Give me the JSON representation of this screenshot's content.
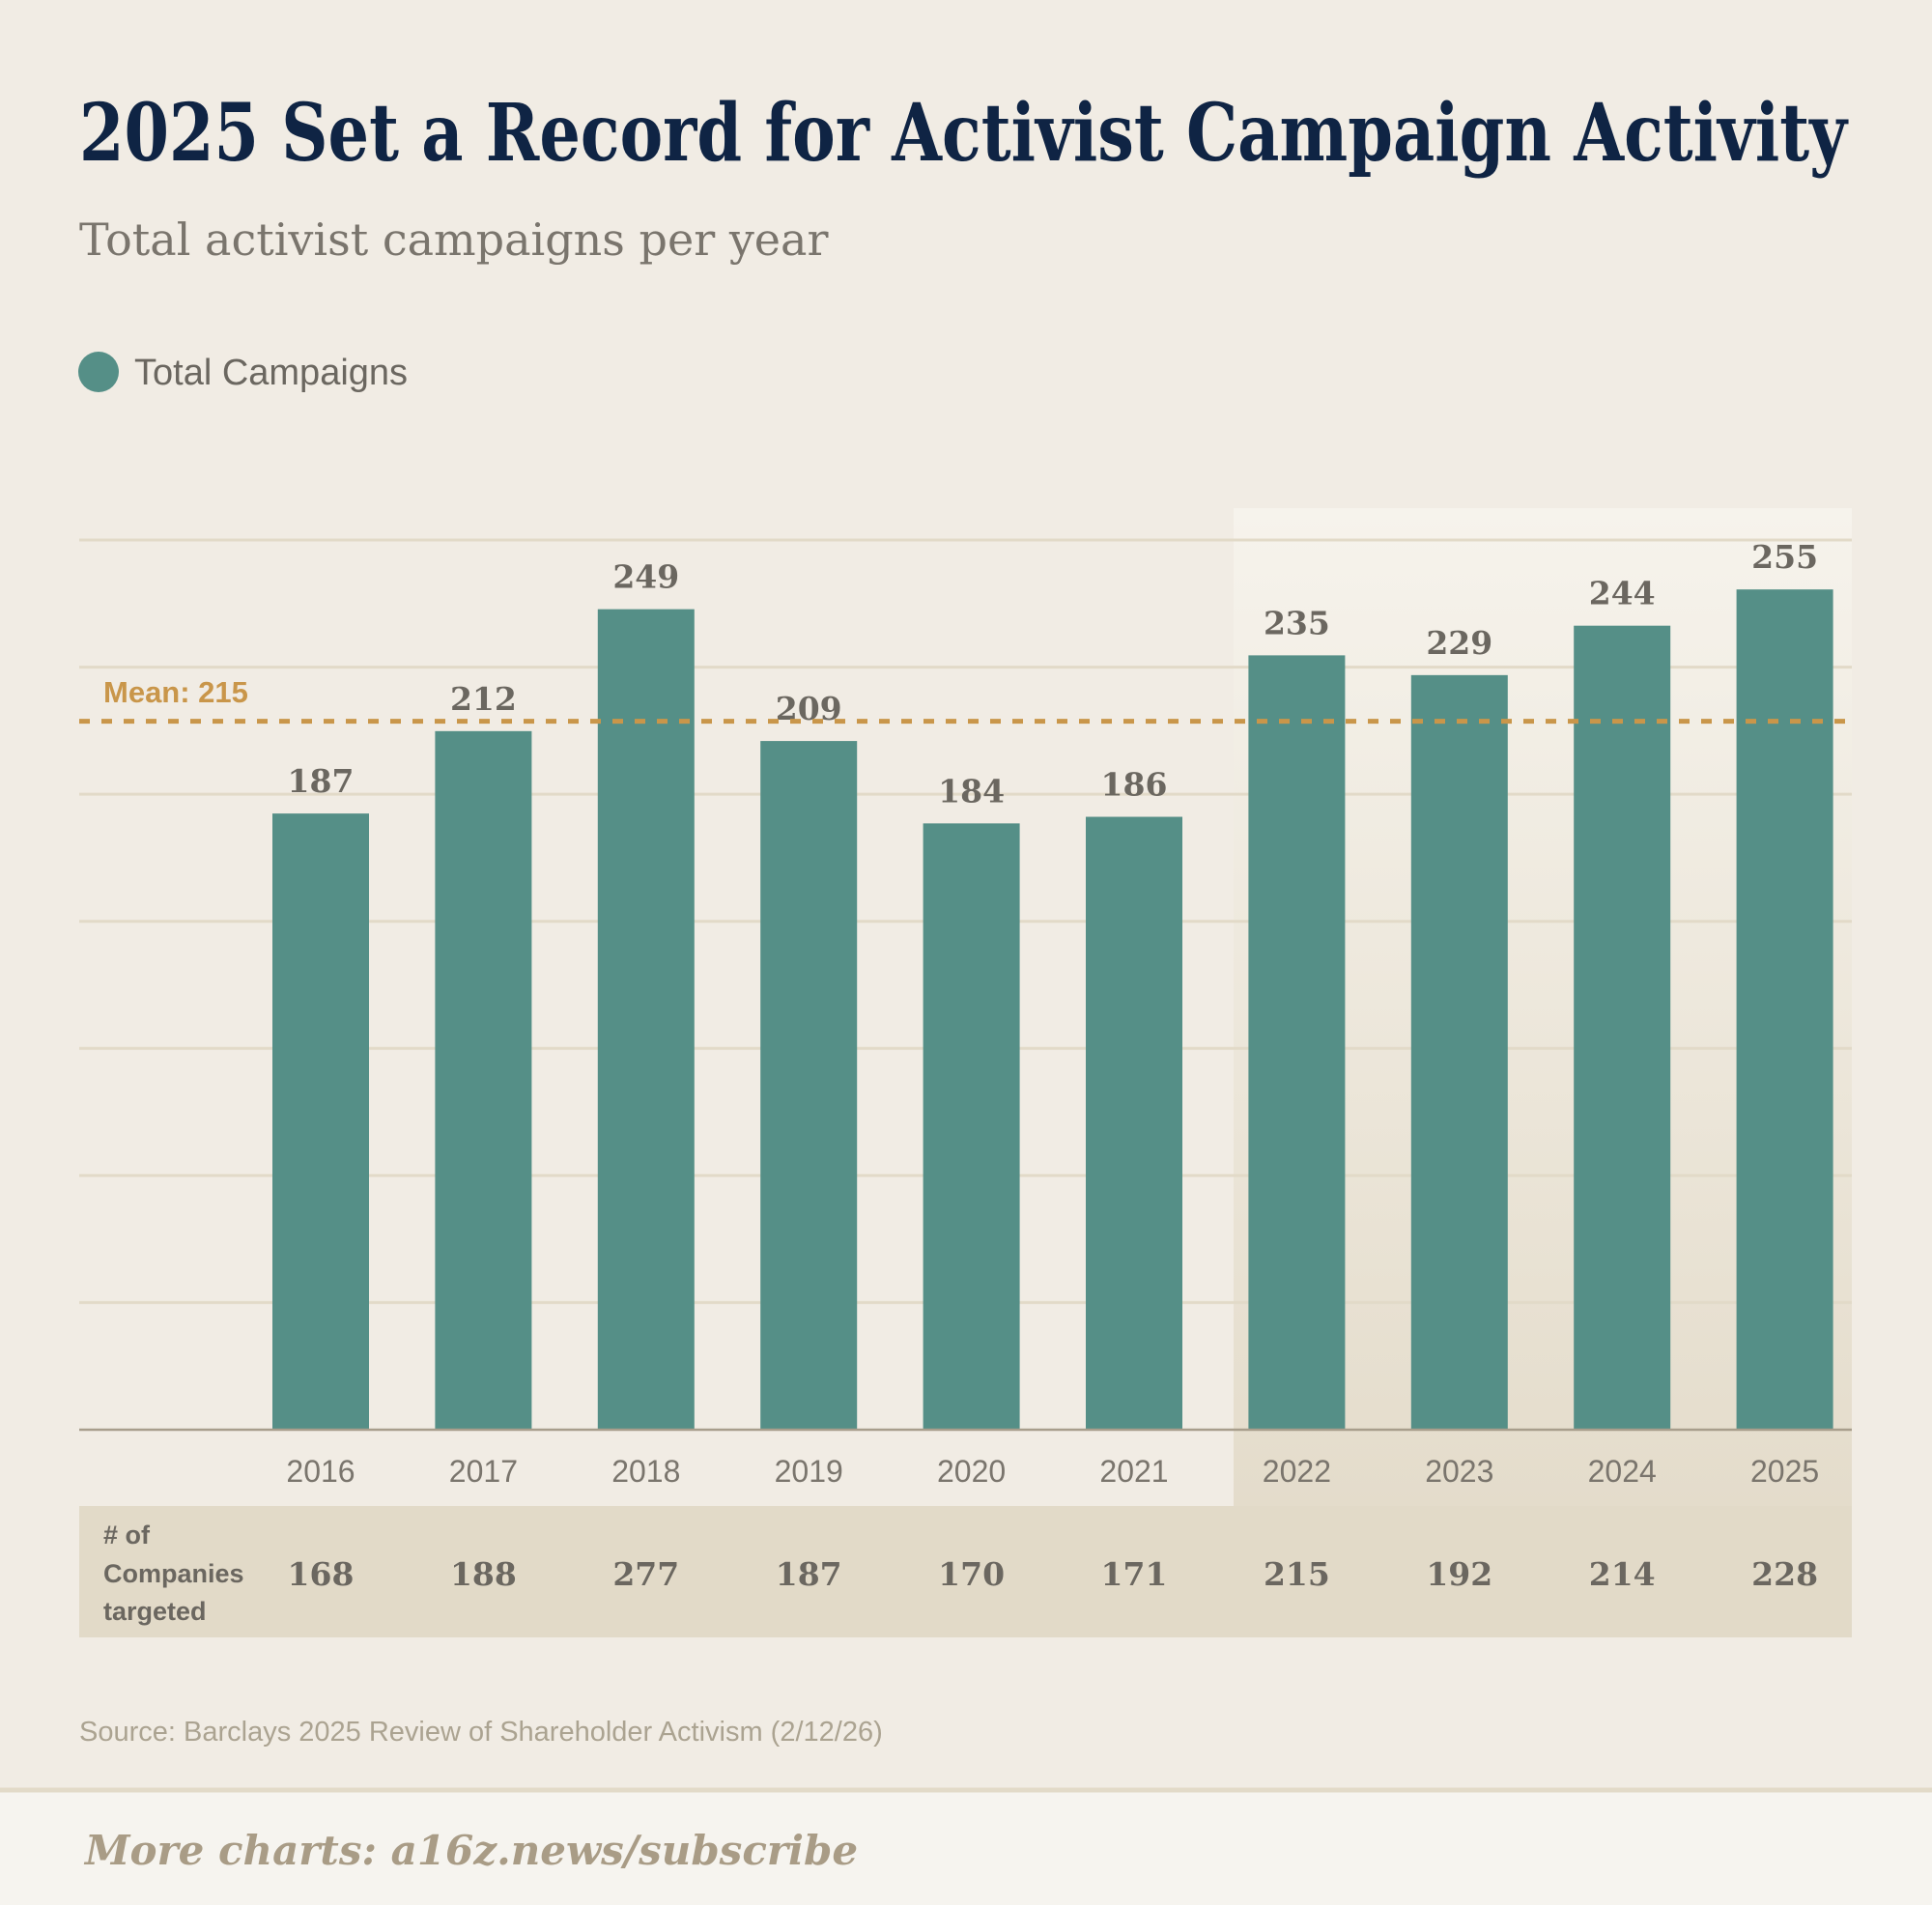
{
  "title": "2025 Set a Record for Activist Campaign Activity",
  "subtitle": "Total activist campaigns per year",
  "legend": [
    {
      "label": "Total Campaigns",
      "color": "#558f87"
    }
  ],
  "mean_label": "Mean: 215",
  "table": {
    "label_lines": [
      "# of",
      "Companies",
      "targeted"
    ],
    "values": [
      168,
      188,
      277,
      187,
      170,
      171,
      215,
      192,
      214,
      228
    ]
  },
  "source": "Source: Barclays 2025 Review of Shareholder Activism (2/12/26)",
  "footer": "More charts: a16z.news/subscribe",
  "colors": {
    "background": "#f1ece4",
    "title": "#0f2444",
    "bar": "#558f87",
    "mean": "#c9964a",
    "label": "#6b6760",
    "table_band": "#e2dac8"
  },
  "chart_data": {
    "type": "bar",
    "title": "2025 Set a Record for Activist Campaign Activity",
    "subtitle": "Total activist campaigns per year",
    "xlabel": "",
    "ylabel": "",
    "categories": [
      "2016",
      "2017",
      "2018",
      "2019",
      "2020",
      "2021",
      "2022",
      "2023",
      "2024",
      "2025"
    ],
    "series": [
      {
        "name": "Total Campaigns",
        "values": [
          187,
          212,
          249,
          209,
          184,
          186,
          235,
          229,
          244,
          255
        ]
      }
    ],
    "ylim": [
      0,
      270
    ],
    "grid": true,
    "mean": 215,
    "highlight_categories": [
      "2022",
      "2023",
      "2024",
      "2025"
    ],
    "legend_position": "top-left"
  }
}
